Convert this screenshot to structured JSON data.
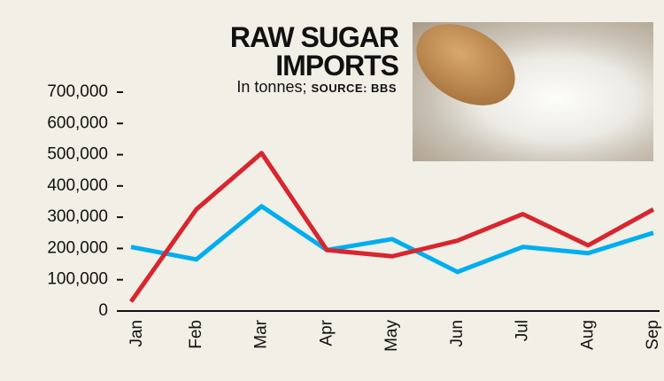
{
  "chart_data": {
    "type": "line",
    "title": "RAW SUGAR IMPORTS",
    "subtitle": "In tonnes;",
    "source": "SOURCE: BBS",
    "categories": [
      "Jan",
      "Feb",
      "Mar",
      "Apr",
      "May",
      "Jun",
      "Jul",
      "Aug",
      "Sep"
    ],
    "series": [
      {
        "color": "#00aeef",
        "values": [
          205000,
          165000,
          335000,
          195000,
          230000,
          125000,
          205000,
          185000,
          250000
        ]
      },
      {
        "color": "#d7262f",
        "values": [
          30000,
          325000,
          505000,
          195000,
          175000,
          225000,
          310000,
          210000,
          325000
        ]
      }
    ],
    "ylim": [
      0,
      700000
    ],
    "yticks": [
      0,
      {
        "value": 100000,
        "label": "100,000"
      },
      {
        "value": 200000,
        "label": "200,000"
      },
      {
        "value": 300000,
        "label": "300,000"
      },
      {
        "value": 400000,
        "label": "400,000"
      },
      {
        "value": 500000,
        "label": "500,000"
      },
      {
        "value": 600000,
        "label": "600,000"
      },
      {
        "value": 700000,
        "label": "700,000"
      }
    ]
  }
}
